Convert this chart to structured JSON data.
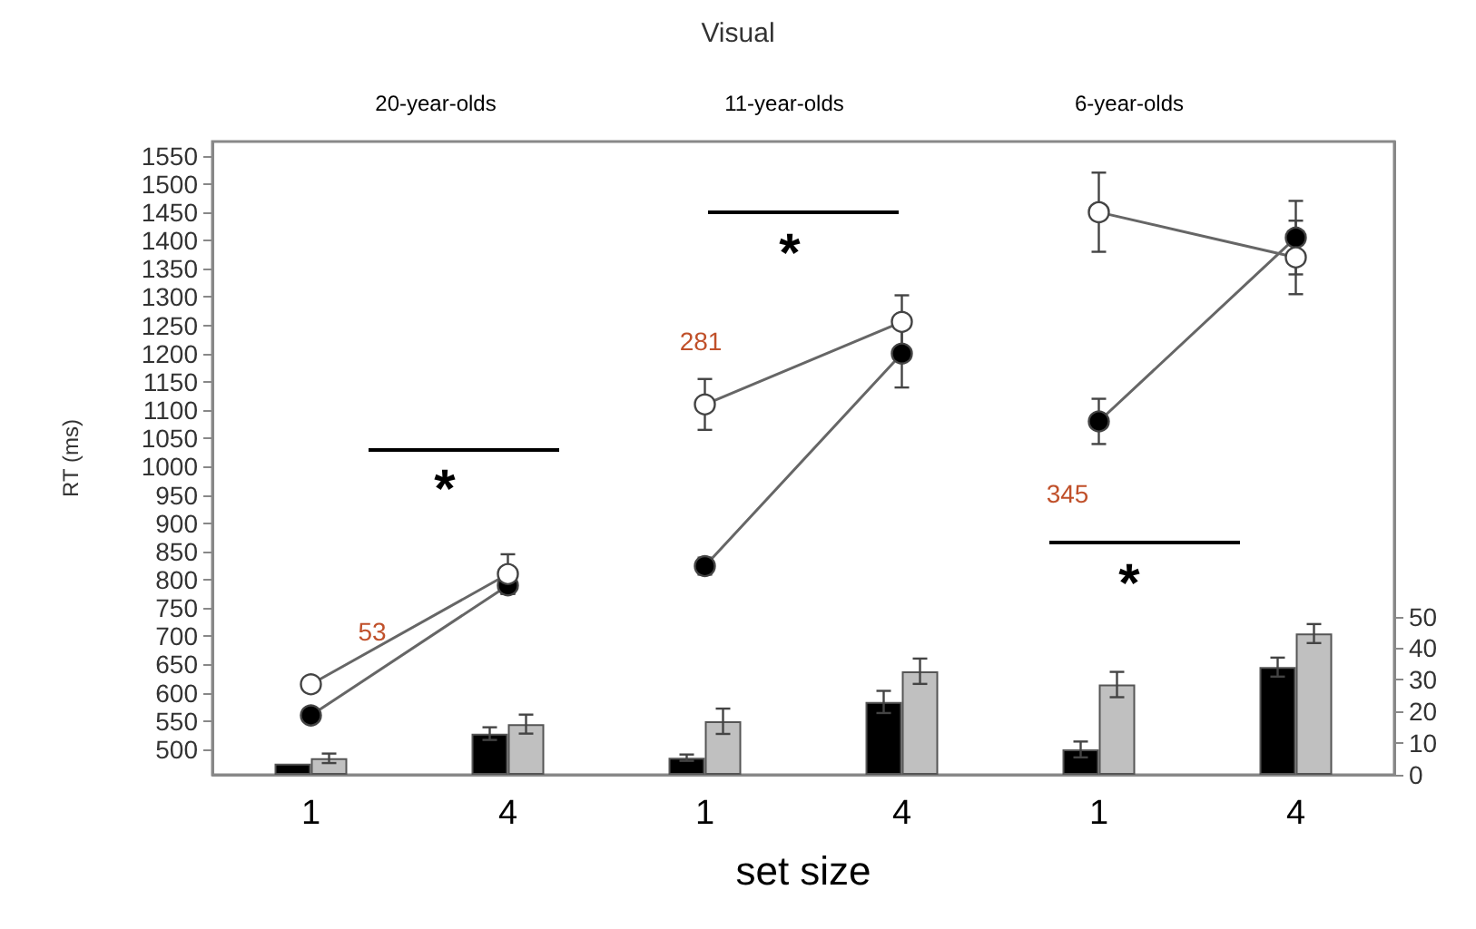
{
  "chart_data": {
    "type": "line",
    "title": "Visual",
    "xlabel": "set size",
    "ylabel": "RT (ms)",
    "categories": [
      "1",
      "4",
      "1",
      "4",
      "1",
      "4"
    ],
    "ylim": [
      455,
      1575
    ],
    "yticks": [
      500,
      550,
      600,
      650,
      700,
      750,
      800,
      850,
      900,
      950,
      1000,
      1050,
      1100,
      1150,
      1200,
      1250,
      1300,
      1350,
      1400,
      1450,
      1500,
      1550
    ],
    "y2lim": [
      0,
      200
    ],
    "y2ticks": [
      0,
      10,
      20,
      30,
      40,
      50
    ],
    "marker": "circle",
    "grid": false,
    "series": [
      {
        "type": "bar",
        "axis": "y2",
        "color": "#000000",
        "values": [
          3.5,
          13,
          5.4,
          23,
          8,
          34
        ],
        "errors": [
          null,
          2,
          1,
          3.5,
          2.5,
          3
        ]
      },
      {
        "type": "bar",
        "axis": "y2",
        "color": "#c0c0c0",
        "values": [
          5.2,
          16,
          16.9,
          32.7,
          28.5,
          44.6
        ],
        "errors": [
          1.5,
          3,
          4,
          4,
          4,
          3
        ]
      },
      {
        "color": "#000000",
        "values": [
          560,
          790,
          null,
          null,
          null,
          null
        ],
        "errors": [
          null,
          15,
          null,
          null,
          null,
          null
        ]
      },
      {
        "color": "#ffffff",
        "values": [
          615,
          810,
          null,
          null,
          null,
          null
        ],
        "errors": [
          null,
          35,
          null,
          null,
          null,
          null
        ]
      },
      {
        "color": "#000000",
        "values": [
          null,
          null,
          824,
          1200,
          null,
          null
        ],
        "errors": [
          null,
          null,
          15,
          60,
          null,
          null
        ]
      },
      {
        "color": "#ffffff",
        "values": [
          null,
          null,
          1110,
          1256,
          null,
          null
        ],
        "errors": [
          null,
          null,
          45,
          47,
          null,
          null
        ]
      },
      {
        "color": "#000000",
        "values": [
          null,
          null,
          null,
          null,
          1080,
          1405
        ],
        "errors": [
          null,
          null,
          null,
          null,
          40,
          65
        ]
      },
      {
        "color": "#ffffff",
        "values": [
          null,
          null,
          null,
          null,
          1450,
          1370
        ],
        "errors": [
          null,
          null,
          null,
          null,
          70,
          65
        ]
      }
    ],
    "annotations": [
      "20-year-olds",
      "11-year-olds",
      "6-year-olds",
      "53",
      "281",
      "345",
      "*",
      "*",
      "*"
    ]
  }
}
